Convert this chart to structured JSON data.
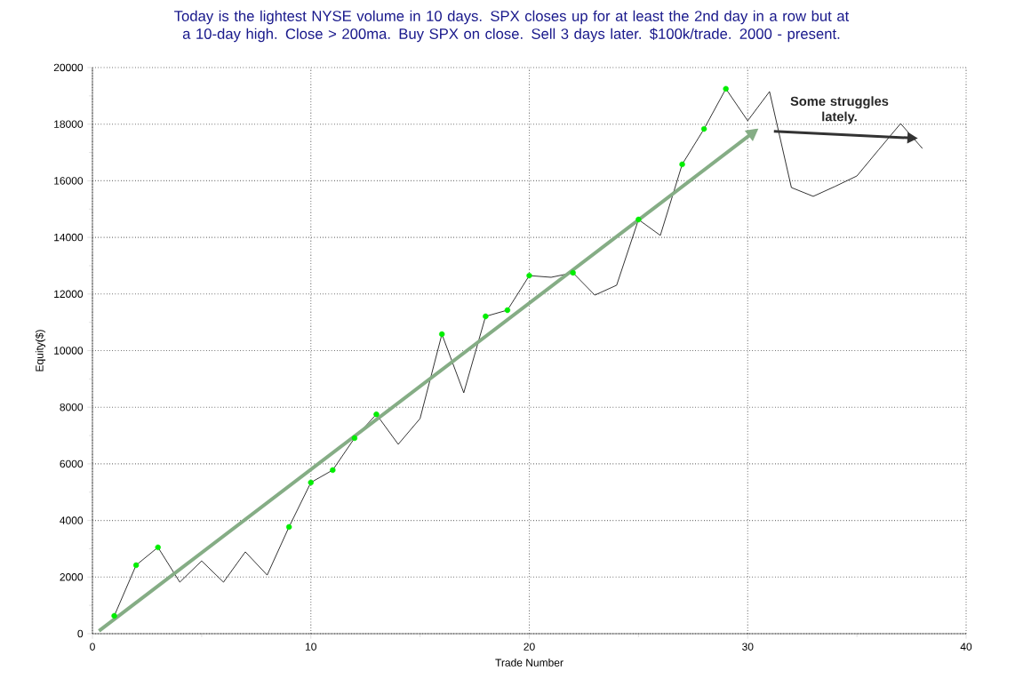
{
  "chart_data": {
    "type": "line",
    "title": "Today is the lightest NYSE volume in 10 days. SPX closes up for at least the 2nd day in a row but at a 10-day high. Close > 200ma. Buy SPX on close. Sell 3 days later. $100k/trade. 2000 - present.",
    "xlabel": "Trade Number",
    "ylabel": "Equity($)",
    "xlim": [
      0,
      40
    ],
    "ylim": [
      0,
      20000
    ],
    "xticks": [
      0,
      10,
      20,
      30,
      40
    ],
    "yticks": [
      0,
      2000,
      4000,
      6000,
      8000,
      10000,
      12000,
      14000,
      16000,
      18000,
      20000
    ],
    "grid": true,
    "annotations": [
      "Some struggles lately."
    ],
    "series": [
      {
        "color": "#000000",
        "marker": "none",
        "x": [
          1,
          2,
          3,
          4,
          5,
          6,
          7,
          8,
          9,
          10,
          11,
          12,
          13,
          14,
          15,
          16,
          17,
          18,
          19,
          20,
          21,
          22,
          23,
          24,
          25,
          26,
          27,
          28,
          29,
          30,
          31,
          32,
          33,
          34,
          35,
          36,
          37,
          38
        ],
        "values": [
          630,
          2420,
          3050,
          1820,
          2570,
          1820,
          2890,
          2070,
          3770,
          5340,
          5780,
          6910,
          7750,
          6690,
          7600,
          10580,
          8510,
          11210,
          11430,
          12650,
          12590,
          12750,
          11960,
          12310,
          14630,
          14070,
          16580,
          17830,
          19250,
          18120,
          19150,
          15760,
          15450,
          15800,
          16170,
          17100,
          18020,
          17140
        ]
      },
      {
        "type": "scatter",
        "color": "#00ee00",
        "marker": "circle",
        "x": [
          1,
          2,
          3,
          9,
          10,
          11,
          12,
          13,
          16,
          18,
          19,
          20,
          22,
          25,
          27,
          28,
          29
        ],
        "values": [
          630,
          2420,
          3050,
          3770,
          5340,
          5780,
          6910,
          7750,
          10580,
          11210,
          11430,
          12650,
          12750,
          14630,
          16580,
          17830,
          19250
        ]
      }
    ]
  }
}
